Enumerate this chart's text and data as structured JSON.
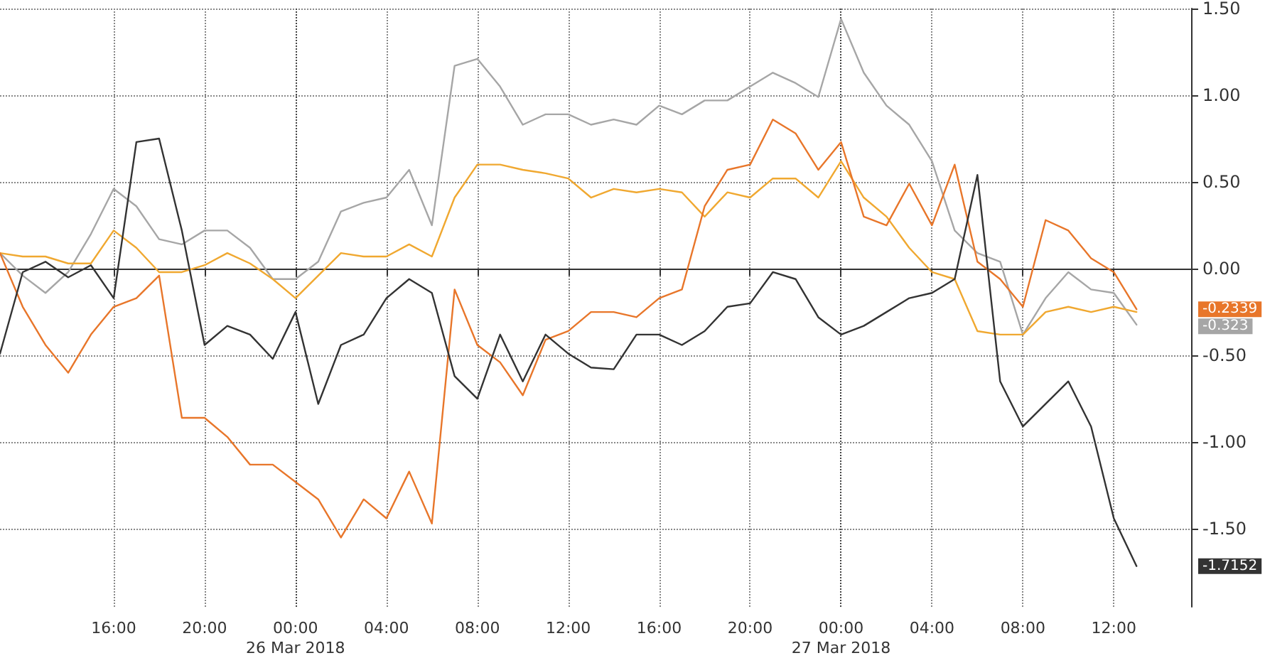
{
  "chart_data": {
    "type": "line",
    "x": [
      "2018-03-25T11:00",
      "2018-03-25T12:00",
      "2018-03-25T13:00",
      "2018-03-25T14:00",
      "2018-03-25T15:00",
      "2018-03-25T16:00",
      "2018-03-25T17:00",
      "2018-03-25T18:00",
      "2018-03-25T19:00",
      "2018-03-25T20:00",
      "2018-03-25T21:00",
      "2018-03-25T22:00",
      "2018-03-25T23:00",
      "2018-03-26T00:00",
      "2018-03-26T01:00",
      "2018-03-26T02:00",
      "2018-03-26T03:00",
      "2018-03-26T04:00",
      "2018-03-26T05:00",
      "2018-03-26T06:00",
      "2018-03-26T07:00",
      "2018-03-26T08:00",
      "2018-03-26T09:00",
      "2018-03-26T10:00",
      "2018-03-26T11:00",
      "2018-03-26T12:00",
      "2018-03-26T13:00",
      "2018-03-26T14:00",
      "2018-03-26T15:00",
      "2018-03-26T16:00",
      "2018-03-26T17:00",
      "2018-03-26T18:00",
      "2018-03-26T19:00",
      "2018-03-26T20:00",
      "2018-03-26T21:00",
      "2018-03-26T22:00",
      "2018-03-26T23:00",
      "2018-03-27T00:00",
      "2018-03-27T01:00",
      "2018-03-27T02:00",
      "2018-03-27T03:00",
      "2018-03-27T04:00",
      "2018-03-27T05:00",
      "2018-03-27T06:00",
      "2018-03-27T07:00",
      "2018-03-27T08:00",
      "2018-03-27T09:00",
      "2018-03-27T10:00",
      "2018-03-27T11:00",
      "2018-03-27T12:00",
      "2018-03-27T13:00"
    ],
    "series": [
      {
        "color": "#a6a6a6",
        "values": [
          0.09,
          -0.04,
          -0.14,
          -0.02,
          0.2,
          0.46,
          0.36,
          0.17,
          0.14,
          0.22,
          0.22,
          0.12,
          -0.06,
          -0.06,
          0.04,
          0.33,
          0.38,
          0.41,
          0.57,
          0.25,
          1.17,
          1.21,
          1.05,
          0.83,
          0.89,
          0.89,
          0.83,
          0.86,
          0.83,
          0.94,
          0.89,
          0.97,
          0.97,
          1.05,
          1.13,
          1.07,
          0.99,
          1.44,
          1.13,
          0.94,
          0.83,
          0.62,
          0.22,
          0.09,
          0.04,
          -0.38,
          -0.17,
          -0.02,
          -0.12,
          -0.14,
          -0.323
        ]
      },
      {
        "color": "#f0a830",
        "values": [
          0.09,
          0.07,
          0.07,
          0.03,
          0.03,
          0.22,
          0.12,
          -0.02,
          -0.02,
          0.02,
          0.09,
          0.03,
          -0.06,
          -0.17,
          -0.04,
          0.09,
          0.07,
          0.07,
          0.14,
          0.07,
          0.41,
          0.6,
          0.6,
          0.57,
          0.55,
          0.52,
          0.41,
          0.46,
          0.44,
          0.46,
          0.44,
          0.3,
          0.44,
          0.41,
          0.52,
          0.52,
          0.41,
          0.62,
          0.41,
          0.3,
          0.12,
          -0.02,
          -0.06,
          -0.36,
          -0.38,
          -0.38,
          -0.25,
          -0.22,
          -0.25,
          -0.22,
          -0.25
        ]
      },
      {
        "color": "#e8762a",
        "values": [
          0.09,
          -0.22,
          -0.44,
          -0.6,
          -0.38,
          -0.22,
          -0.17,
          -0.04,
          -0.86,
          -0.86,
          -0.97,
          -1.13,
          -1.13,
          -1.23,
          -1.33,
          -1.55,
          -1.33,
          -1.44,
          -1.17,
          -1.47,
          -0.12,
          -0.44,
          -0.54,
          -0.73,
          -0.41,
          -0.36,
          -0.25,
          -0.25,
          -0.28,
          -0.17,
          -0.12,
          0.36,
          0.57,
          0.6,
          0.86,
          0.78,
          0.57,
          0.73,
          0.3,
          0.25,
          0.49,
          0.25,
          0.6,
          0.04,
          -0.06,
          -0.22,
          0.28,
          0.22,
          0.06,
          -0.02,
          -0.2339
        ]
      },
      {
        "color": "#333333",
        "values": [
          -0.49,
          -0.02,
          0.04,
          -0.05,
          0.02,
          -0.17,
          0.73,
          0.75,
          0.22,
          -0.44,
          -0.33,
          -0.38,
          -0.52,
          -0.25,
          -0.78,
          -0.44,
          -0.38,
          -0.17,
          -0.06,
          -0.14,
          -0.62,
          -0.75,
          -0.38,
          -0.65,
          -0.38,
          -0.49,
          -0.57,
          -0.58,
          -0.38,
          -0.38,
          -0.44,
          -0.36,
          -0.22,
          -0.2,
          -0.02,
          -0.06,
          -0.28,
          -0.38,
          -0.33,
          -0.25,
          -0.17,
          -0.14,
          -0.06,
          0.54,
          -0.65,
          -0.91,
          -0.78,
          -0.65,
          -0.91,
          -1.44,
          -1.7152
        ]
      }
    ],
    "xlim": [
      "2018-03-25T11:00",
      "2018-03-27T15:24"
    ],
    "xticks": [
      {
        "value": "2018-03-25T16:00",
        "label": "16:00"
      },
      {
        "value": "2018-03-25T20:00",
        "label": "20:00"
      },
      {
        "value": "2018-03-26T00:00",
        "label": "00:00\n26 Mar 2018"
      },
      {
        "value": "2018-03-26T04:00",
        "label": "04:00"
      },
      {
        "value": "2018-03-26T08:00",
        "label": "08:00"
      },
      {
        "value": "2018-03-26T12:00",
        "label": "12:00"
      },
      {
        "value": "2018-03-26T16:00",
        "label": "16:00"
      },
      {
        "value": "2018-03-26T20:00",
        "label": "20:00"
      },
      {
        "value": "2018-03-27T00:00",
        "label": "00:00\n27 Mar 2018"
      },
      {
        "value": "2018-03-27T04:00",
        "label": "04:00"
      },
      {
        "value": "2018-03-27T08:00",
        "label": "08:00"
      },
      {
        "value": "2018-03-27T12:00",
        "label": "12:00"
      }
    ],
    "ylim": [
      -1.95,
      1.5
    ],
    "yticks": [
      {
        "value": -1.5,
        "label": "-1.50"
      },
      {
        "value": -1,
        "label": "-1.00"
      },
      {
        "value": -0.5,
        "label": "-0.50"
      },
      {
        "value": 0,
        "label": "0.00"
      },
      {
        "value": 0.5,
        "label": "0.50"
      },
      {
        "value": 1,
        "label": "1.00"
      },
      {
        "value": 1.5,
        "label": "1.50"
      }
    ],
    "annotations": [
      "-0.2339",
      "-0.323",
      "-1.7152"
    ],
    "grid": true,
    "marker": "none",
    "line_style": "solid"
  }
}
